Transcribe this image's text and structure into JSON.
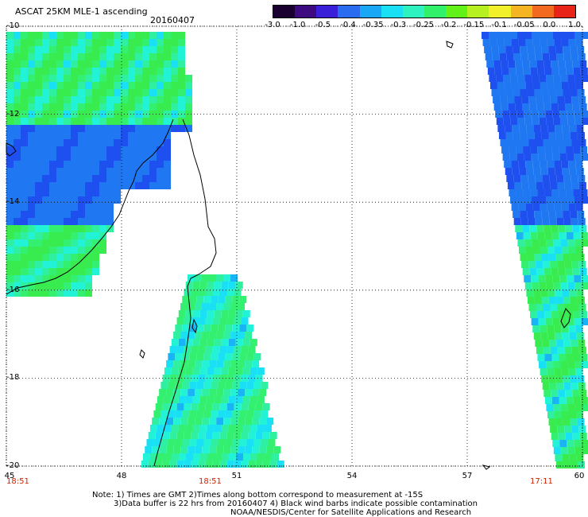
{
  "header": {
    "title": "ASCAT 25KM MLE-1 ascending",
    "date": "20160407"
  },
  "colorbar": {
    "colors": [
      "#1a0030",
      "#3d0a80",
      "#3a1fd8",
      "#2a6cf0",
      "#1aa7f5",
      "#19e0f5",
      "#2ef2c0",
      "#31f06a",
      "#62f21a",
      "#b6f020",
      "#f2f02a",
      "#f5b523",
      "#f26a20",
      "#e82418"
    ],
    "tick_labels": [
      "-3.0",
      "-1.0",
      "-0.5",
      "-0.4",
      "-0.35",
      "-0.3",
      "-0.25",
      "-0.2",
      "-0.15",
      "-0.1",
      "-0.05",
      "0.0",
      "1.0"
    ]
  },
  "axes": {
    "y_ticks": [
      "-10",
      "-12",
      "-14",
      "-16",
      "-18",
      "-20"
    ],
    "x_ticks": [
      "45",
      "48",
      "51",
      "54",
      "57",
      "60"
    ],
    "lat_range": [
      -20,
      -10
    ],
    "lon_range": [
      45,
      60
    ],
    "grid": true,
    "grid_style": "dotted"
  },
  "pass_times": [
    "18:51",
    "18:51",
    "17:11"
  ],
  "notes": [
    "Note: 1) Times are GMT 2)Times along bottom correspond to measurement at -15S",
    "3)Data buffer is 22 hrs from 20160407 4) Black wind barbs indicate possible contamination",
    "NOAA/NESDIS/Center for Satellite Applications and Research"
  ]
}
